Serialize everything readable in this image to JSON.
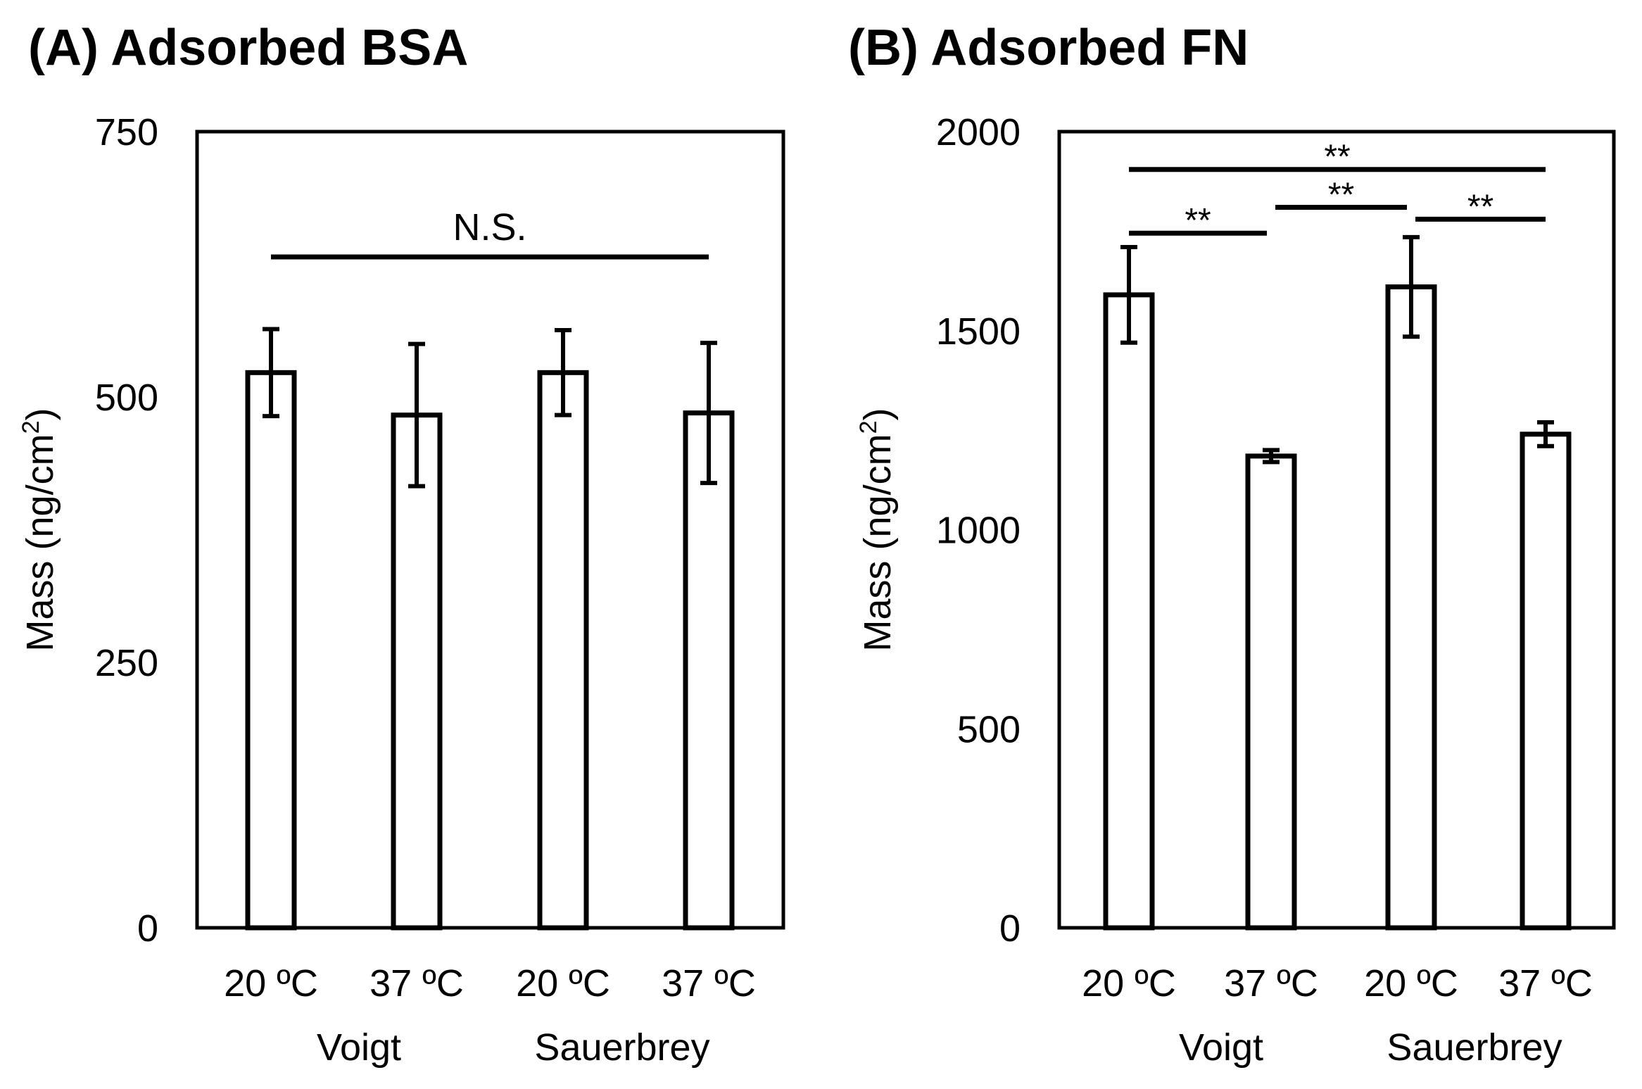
{
  "chart_data": [
    {
      "type": "bar",
      "title": "(A) Adsorbed BSA",
      "ylabel": "Mass (ng/cm",
      "ylabel_sup": "2",
      "ylabel_close": ")",
      "ylim": [
        0,
        750
      ],
      "yticks": [
        "0",
        "250",
        "500",
        "750"
      ],
      "categories": [
        "20 ºC",
        "37 ºC",
        "20 ºC",
        "37 ºC"
      ],
      "groups": [
        "Voigt",
        "Sauerbrey"
      ],
      "values": [
        523,
        483,
        523,
        485
      ],
      "errors": [
        41,
        67,
        40,
        66
      ],
      "significance": [
        {
          "from": 0,
          "to": 3,
          "y": 632,
          "label": "N.S."
        }
      ]
    },
    {
      "type": "bar",
      "title": "(B) Adsorbed FN",
      "ylabel": "Mass (ng/cm",
      "ylabel_sup": "2",
      "ylabel_close": ")",
      "ylim": [
        0,
        2000
      ],
      "yticks": [
        "0",
        "500",
        "1000",
        "1500",
        "2000"
      ],
      "categories": [
        "20 ºC",
        "37 ºC",
        "20 ºC",
        "37 ºC"
      ],
      "groups": [
        "Voigt",
        "Sauerbrey"
      ],
      "values": [
        1590,
        1185,
        1610,
        1240
      ],
      "errors": [
        120,
        15,
        125,
        30
      ],
      "significance": [
        {
          "from": 0,
          "to": 3,
          "y": 1905,
          "label": "**"
        },
        {
          "from": 0,
          "to": 1,
          "y": 1745,
          "label": "**"
        },
        {
          "from": 1,
          "to": 2,
          "y": 1810,
          "label": "**"
        },
        {
          "from": 2,
          "to": 3,
          "y": 1780,
          "label": "**"
        }
      ]
    }
  ]
}
